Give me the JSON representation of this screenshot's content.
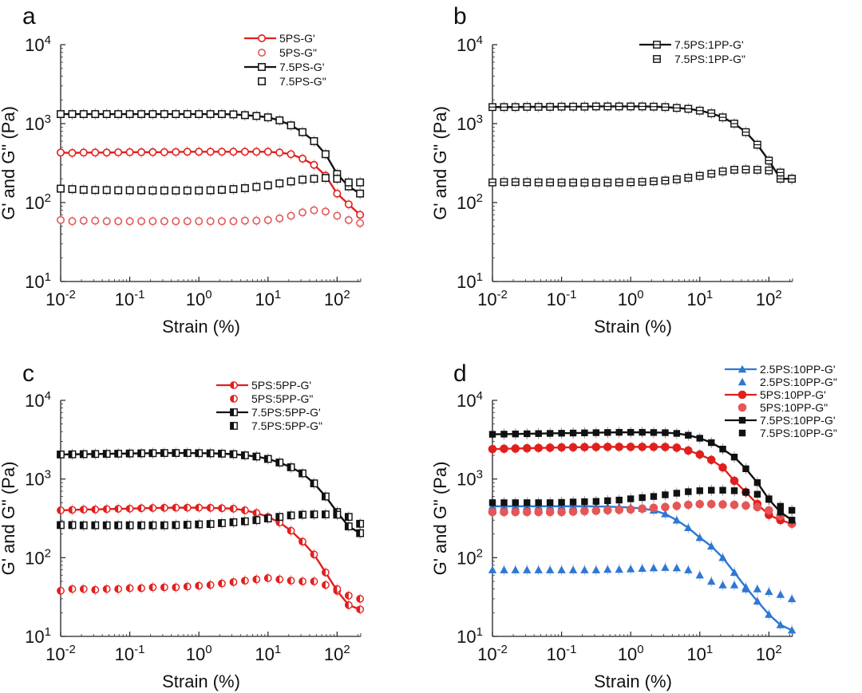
{
  "figure": {
    "panels": [
      "a",
      "b",
      "c",
      "d"
    ]
  },
  "chart_data": [
    {
      "panel_label": "a",
      "type": "line",
      "xscale": "log",
      "yscale": "log",
      "xlabel": "Strain (%)",
      "ylabel": "G' and G\" (Pa)",
      "xlim": [
        0.01,
        220
      ],
      "ylim": [
        10,
        10000
      ],
      "xticks": [
        {
          "v": 0.01,
          "b": "10",
          "e": "-2"
        },
        {
          "v": 0.1,
          "b": "10",
          "e": "-1"
        },
        {
          "v": 1,
          "b": "10",
          "e": "0"
        },
        {
          "v": 10,
          "b": "10",
          "e": "1"
        },
        {
          "v": 100,
          "b": "10",
          "e": "2"
        }
      ],
      "yticks": [
        {
          "v": 10,
          "b": "10",
          "e": "1"
        },
        {
          "v": 100,
          "b": "10",
          "e": "2"
        },
        {
          "v": 1000,
          "b": "10",
          "e": "3"
        },
        {
          "v": 10000,
          "b": "10",
          "e": "4"
        }
      ],
      "legend_position": "top-right",
      "x": [
        0.01,
        0.0147,
        0.0215,
        0.0316,
        0.0464,
        0.0681,
        0.1,
        0.147,
        0.215,
        0.316,
        0.464,
        0.681,
        1,
        1.47,
        2.15,
        3.16,
        4.64,
        6.81,
        10,
        14.7,
        21.5,
        31.6,
        46.4,
        68.1,
        100,
        147,
        215
      ],
      "series": [
        {
          "name": "5PS-G'",
          "color": "#e0201e",
          "marker": "circle-open",
          "line": true,
          "values": [
            430,
            425,
            430,
            430,
            430,
            432,
            435,
            435,
            435,
            435,
            437,
            440,
            440,
            440,
            440,
            440,
            440,
            440,
            440,
            430,
            410,
            360,
            300,
            220,
            130,
            95,
            70
          ]
        },
        {
          "name": "5PS-G\"",
          "color": "#e05a5a",
          "marker": "circle-open",
          "line": false,
          "values": [
            60,
            58,
            59,
            59,
            58,
            58,
            58,
            58,
            58,
            58,
            58,
            58,
            58,
            58,
            58,
            58,
            59,
            59,
            60,
            63,
            68,
            75,
            80,
            77,
            68,
            60,
            55
          ]
        },
        {
          "name": "7.5PS-G'",
          "color": "#111111",
          "marker": "square-open",
          "line": true,
          "values": [
            1320,
            1320,
            1320,
            1320,
            1320,
            1320,
            1320,
            1320,
            1320,
            1320,
            1320,
            1320,
            1320,
            1320,
            1320,
            1310,
            1280,
            1250,
            1200,
            1100,
            950,
            780,
            600,
            410,
            230,
            160,
            130
          ]
        },
        {
          "name": "7.5PS-G\"",
          "color": "#111111",
          "marker": "square-open",
          "line": false,
          "values": [
            150,
            148,
            145,
            144,
            144,
            143,
            143,
            143,
            142,
            142,
            142,
            142,
            142,
            143,
            145,
            148,
            152,
            158,
            165,
            175,
            185,
            195,
            200,
            205,
            200,
            180,
            180
          ]
        }
      ]
    },
    {
      "panel_label": "b",
      "type": "line",
      "xscale": "log",
      "yscale": "log",
      "xlabel": "Strain (%)",
      "ylabel": "G' and G\" (Pa)",
      "xlim": [
        0.01,
        220
      ],
      "ylim": [
        10,
        10000
      ],
      "xticks": [
        {
          "v": 0.01,
          "b": "10",
          "e": "-2"
        },
        {
          "v": 0.1,
          "b": "10",
          "e": "-1"
        },
        {
          "v": 1,
          "b": "10",
          "e": "0"
        },
        {
          "v": 10,
          "b": "10",
          "e": "1"
        },
        {
          "v": 100,
          "b": "10",
          "e": "2"
        }
      ],
      "yticks": [
        {
          "v": 10,
          "b": "10",
          "e": "1"
        },
        {
          "v": 100,
          "b": "10",
          "e": "2"
        },
        {
          "v": 1000,
          "b": "10",
          "e": "3"
        },
        {
          "v": 10000,
          "b": "10",
          "e": "4"
        }
      ],
      "legend_position": "top-right",
      "x": [
        0.01,
        0.0147,
        0.0215,
        0.0316,
        0.0464,
        0.0681,
        0.1,
        0.147,
        0.215,
        0.316,
        0.464,
        0.681,
        1,
        1.47,
        2.15,
        3.16,
        4.64,
        6.81,
        10,
        14.7,
        21.5,
        31.6,
        46.4,
        68.1,
        100,
        147,
        215
      ],
      "series": [
        {
          "name": "7.5PS:1PP-G'",
          "color": "#111111",
          "marker": "square-hbar",
          "line": true,
          "values": [
            1620,
            1620,
            1620,
            1630,
            1630,
            1630,
            1640,
            1640,
            1640,
            1650,
            1650,
            1650,
            1650,
            1650,
            1640,
            1620,
            1580,
            1540,
            1460,
            1350,
            1200,
            1000,
            780,
            540,
            340,
            200,
            200
          ]
        },
        {
          "name": "7.5PS:1PP-G\"",
          "color": "#111111",
          "marker": "square-hbar",
          "line": false,
          "values": [
            180,
            182,
            182,
            181,
            180,
            180,
            179,
            179,
            179,
            179,
            179,
            180,
            181,
            183,
            186,
            190,
            197,
            206,
            218,
            232,
            248,
            260,
            262,
            260,
            255,
            240,
            200
          ]
        }
      ]
    },
    {
      "panel_label": "c",
      "type": "line",
      "xscale": "log",
      "yscale": "log",
      "xlabel": "Strain (%)",
      "ylabel": "G' and G\" (Pa)",
      "xlim": [
        0.01,
        220
      ],
      "ylim": [
        10,
        10000
      ],
      "xticks": [
        {
          "v": 0.01,
          "b": "10",
          "e": "-2"
        },
        {
          "v": 0.1,
          "b": "10",
          "e": "-1"
        },
        {
          "v": 1,
          "b": "10",
          "e": "0"
        },
        {
          "v": 10,
          "b": "10",
          "e": "1"
        },
        {
          "v": 100,
          "b": "10",
          "e": "2"
        }
      ],
      "yticks": [
        {
          "v": 10,
          "b": "10",
          "e": "1"
        },
        {
          "v": 100,
          "b": "10",
          "e": "2"
        },
        {
          "v": 1000,
          "b": "10",
          "e": "3"
        },
        {
          "v": 10000,
          "b": "10",
          "e": "4"
        }
      ],
      "legend_position": "top-right",
      "x": [
        0.01,
        0.0147,
        0.0215,
        0.0316,
        0.0464,
        0.0681,
        0.1,
        0.147,
        0.215,
        0.316,
        0.464,
        0.681,
        1,
        1.47,
        2.15,
        3.16,
        4.64,
        6.81,
        10,
        14.7,
        21.5,
        31.6,
        46.4,
        68.1,
        100,
        147,
        215
      ],
      "series": [
        {
          "name": "5PS:5PP-G'",
          "color": "#e0201e",
          "marker": "circle-half",
          "line": true,
          "values": [
            400,
            405,
            410,
            410,
            415,
            418,
            420,
            425,
            428,
            430,
            432,
            432,
            432,
            430,
            425,
            420,
            400,
            370,
            330,
            280,
            220,
            160,
            110,
            65,
            38,
            25,
            22
          ]
        },
        {
          "name": "5PS:5PP-G\"",
          "color": "#e0201e",
          "marker": "circle-half",
          "line": false,
          "values": [
            38,
            40,
            40,
            39,
            40,
            40,
            41,
            41,
            42,
            42,
            42,
            43,
            44,
            45,
            47,
            49,
            51,
            53,
            55,
            53,
            51,
            50,
            50,
            45,
            40,
            33,
            30
          ]
        },
        {
          "name": "7.5PS:5PP-G'",
          "color": "#111111",
          "marker": "square-half",
          "line": true,
          "values": [
            2050,
            2060,
            2070,
            2080,
            2090,
            2100,
            2110,
            2120,
            2130,
            2140,
            2140,
            2140,
            2130,
            2120,
            2100,
            2070,
            2000,
            1930,
            1800,
            1620,
            1410,
            1180,
            880,
            600,
            380,
            250,
            205
          ]
        },
        {
          "name": "7.5PS:5PP-G\"",
          "color": "#111111",
          "marker": "square-half",
          "line": false,
          "values": [
            260,
            260,
            258,
            258,
            258,
            258,
            258,
            258,
            258,
            258,
            260,
            262,
            265,
            268,
            275,
            282,
            290,
            300,
            315,
            330,
            345,
            352,
            355,
            355,
            352,
            330,
            270
          ]
        }
      ]
    },
    {
      "panel_label": "d",
      "type": "line",
      "xscale": "log",
      "yscale": "log",
      "xlabel": "Strain (%)",
      "ylabel": "G' and G\" (Pa)",
      "xlim": [
        0.01,
        220
      ],
      "ylim": [
        10,
        10000
      ],
      "xticks": [
        {
          "v": 0.01,
          "b": "10",
          "e": "-2"
        },
        {
          "v": 0.1,
          "b": "10",
          "e": "-1"
        },
        {
          "v": 1,
          "b": "10",
          "e": "0"
        },
        {
          "v": 10,
          "b": "10",
          "e": "1"
        },
        {
          "v": 100,
          "b": "10",
          "e": "2"
        }
      ],
      "yticks": [
        {
          "v": 10,
          "b": "10",
          "e": "1"
        },
        {
          "v": 100,
          "b": "10",
          "e": "2"
        },
        {
          "v": 1000,
          "b": "10",
          "e": "3"
        },
        {
          "v": 10000,
          "b": "10",
          "e": "4"
        }
      ],
      "legend_position": "top-right",
      "x": [
        0.01,
        0.0147,
        0.0215,
        0.0316,
        0.0464,
        0.0681,
        0.1,
        0.147,
        0.215,
        0.316,
        0.464,
        0.681,
        1,
        1.47,
        2.15,
        3.16,
        4.64,
        6.81,
        10,
        14.7,
        21.5,
        31.6,
        46.4,
        68.1,
        100,
        147,
        215
      ],
      "series": [
        {
          "name": "2.5PS:10PP-G'",
          "color": "#2e78d2",
          "marker": "triangle-filled",
          "line": true,
          "values": [
            450,
            450,
            450,
            450,
            450,
            450,
            450,
            450,
            450,
            448,
            445,
            440,
            435,
            420,
            400,
            360,
            300,
            240,
            180,
            140,
            100,
            65,
            42,
            28,
            19,
            14,
            12
          ]
        },
        {
          "name": "2.5PS:10PP-G\"",
          "color": "#2e78d2",
          "marker": "triangle-filled",
          "line": false,
          "values": [
            70,
            70,
            70,
            70,
            70,
            70,
            70,
            70,
            70,
            70,
            71,
            71,
            72,
            73,
            74,
            75,
            74,
            70,
            60,
            50,
            45,
            45,
            40,
            40,
            37,
            34,
            30
          ]
        },
        {
          "name": "5PS:10PP-G'",
          "color": "#e0201e",
          "marker": "circle-filled",
          "line": true,
          "values": [
            2400,
            2420,
            2440,
            2460,
            2480,
            2500,
            2520,
            2530,
            2540,
            2550,
            2560,
            2560,
            2560,
            2560,
            2560,
            2550,
            2500,
            2300,
            2050,
            1750,
            1400,
            950,
            680,
            480,
            350,
            300,
            270
          ]
        },
        {
          "name": "5PS:10PP-G\"",
          "color": "#e55656",
          "marker": "circle-filled",
          "line": false,
          "values": [
            380,
            380,
            380,
            380,
            380,
            380,
            380,
            385,
            390,
            395,
            400,
            405,
            410,
            420,
            430,
            440,
            455,
            470,
            480,
            480,
            475,
            470,
            460,
            440,
            400,
            340,
            270
          ]
        },
        {
          "name": "7.5PS:10PP-G'",
          "color": "#111111",
          "marker": "square-filled",
          "line": true,
          "values": [
            3700,
            3720,
            3740,
            3760,
            3780,
            3800,
            3820,
            3840,
            3860,
            3880,
            3900,
            3920,
            3920,
            3920,
            3900,
            3880,
            3800,
            3600,
            3300,
            2900,
            2400,
            1900,
            1350,
            900,
            550,
            380,
            300
          ]
        },
        {
          "name": "7.5PS:10PP-G\"",
          "color": "#111111",
          "marker": "square-filled",
          "line": false,
          "values": [
            500,
            500,
            500,
            500,
            500,
            500,
            505,
            510,
            515,
            520,
            530,
            540,
            560,
            580,
            600,
            630,
            660,
            690,
            710,
            720,
            720,
            710,
            680,
            640,
            560,
            450,
            400
          ]
        }
      ]
    }
  ]
}
